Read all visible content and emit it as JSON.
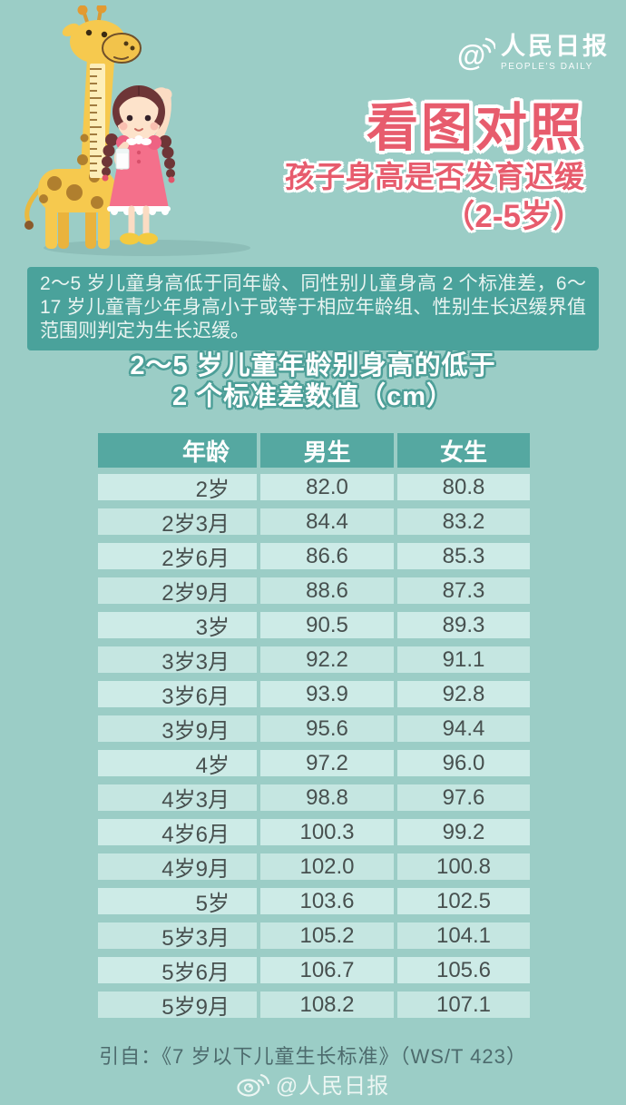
{
  "brand": {
    "logo_cn": "人民日报",
    "logo_en": "PEOPLE'S DAILY"
  },
  "header": {
    "title_line1": "看图对照",
    "title_line2": "孩子身高是否发育迟缓",
    "title_line3": "（2-5岁）"
  },
  "description": "2～5 岁儿童身高低于同年龄、同性别儿童身高 2 个标准差，6～17 岁儿童青少年身高小于或等于相应年龄组、性别生长迟缓界值范围则判定为生长迟缓。",
  "table": {
    "title_line1": "2～5 岁儿童年龄别身高的低于",
    "title_line2": "2 个标准差数值（cm）"
  },
  "chart_data": {
    "type": "table",
    "title": "2～5 岁儿童年龄别身高的低于 2 个标准差数值（cm）",
    "unit": "cm",
    "columns": [
      "年龄",
      "男生",
      "女生"
    ],
    "rows": [
      [
        "2岁",
        "82.0",
        "80.8"
      ],
      [
        "2岁3月",
        "84.4",
        "83.2"
      ],
      [
        "2岁6月",
        "86.6",
        "85.3"
      ],
      [
        "2岁9月",
        "88.6",
        "87.3"
      ],
      [
        "3岁",
        "90.5",
        "89.3"
      ],
      [
        "3岁3月",
        "92.2",
        "91.1"
      ],
      [
        "3岁6月",
        "93.9",
        "92.8"
      ],
      [
        "3岁9月",
        "95.6",
        "94.4"
      ],
      [
        "4岁",
        "97.2",
        "96.0"
      ],
      [
        "4岁3月",
        "98.8",
        "97.6"
      ],
      [
        "4岁6月",
        "100.3",
        "99.2"
      ],
      [
        "4岁9月",
        "102.0",
        "100.8"
      ],
      [
        "5岁",
        "103.6",
        "102.5"
      ],
      [
        "5岁3月",
        "105.2",
        "104.1"
      ],
      [
        "5岁6月",
        "106.7",
        "105.6"
      ],
      [
        "5岁9月",
        "108.2",
        "107.1"
      ]
    ]
  },
  "footer": {
    "citation": "引自：《7 岁以下儿童生长标准》（WS/T 423）",
    "weibo_handle": "@人民日报"
  },
  "colors": {
    "background": "#9bcdc6",
    "accent_red": "#e75c6d",
    "panel_teal": "#4aa29b",
    "table_header_teal": "#55a8a1",
    "table_row_teal": "#cdebe7",
    "text_white": "#ffffff"
  }
}
